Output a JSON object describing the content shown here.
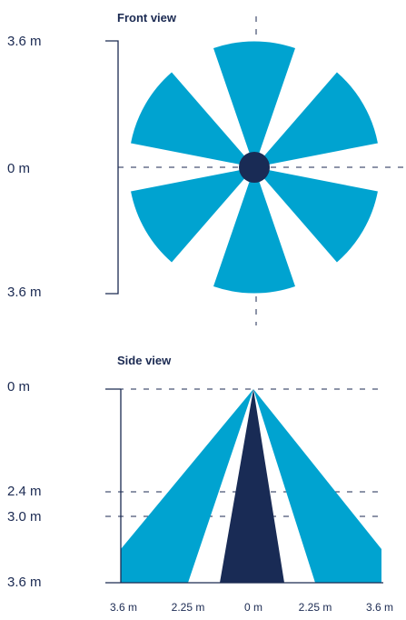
{
  "colors": {
    "beam": "#00a3d0",
    "core": "#192b55",
    "axis": "#1b2a52",
    "dashed": "#1b2a52"
  },
  "front_view": {
    "title": "Front view",
    "labels": {
      "top": "3.6 m",
      "middle": "0 m",
      "bottom": "3.6 m"
    }
  },
  "side_view": {
    "title": "Side view",
    "left_labels": {
      "top": "0 m",
      "l24": "2.4 m",
      "l30": "3.0 m",
      "bottom": "3.6 m"
    },
    "bottom_ticks": [
      "3.6 m",
      "2.25 m",
      "0 m",
      "2.25 m",
      "3.6 m"
    ]
  }
}
